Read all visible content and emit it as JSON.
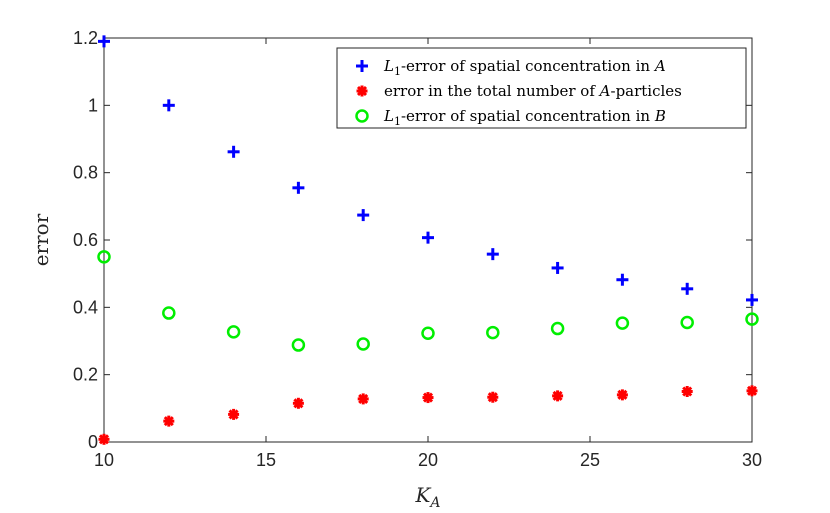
{
  "chart_data": {
    "type": "scatter",
    "xlabel": "K",
    "xlabel_sub": "A",
    "ylabel": "error",
    "xlim": [
      10,
      30
    ],
    "ylim": [
      0,
      1.2
    ],
    "xticks": [
      "10",
      "15",
      "20",
      "25",
      "30"
    ],
    "yticks": [
      "0",
      "0.2",
      "0.4",
      "0.6",
      "0.8",
      "1",
      "1.2"
    ],
    "grid": false,
    "legend_position": "top-right",
    "x": [
      10,
      12,
      14,
      16,
      18,
      20,
      22,
      24,
      26,
      28,
      30
    ],
    "series": [
      {
        "name_parts": [
          "L",
          "1",
          "-error of spatial concentration in ",
          "A"
        ],
        "marker": "plus",
        "color": "#0000ff",
        "values": [
          1.19,
          1.0,
          0.862,
          0.755,
          0.674,
          0.607,
          0.558,
          0.517,
          0.482,
          0.455,
          0.422
        ]
      },
      {
        "name_parts": [
          "error in the total number of ",
          "A",
          "-particles"
        ],
        "marker": "asterisk",
        "color": "#ff0000",
        "values": [
          0.008,
          0.062,
          0.082,
          0.115,
          0.128,
          0.132,
          0.133,
          0.137,
          0.14,
          0.15,
          0.152
        ]
      },
      {
        "name_parts": [
          "L",
          "1",
          "-error of spatial concentration in ",
          "B"
        ],
        "marker": "circle",
        "color": "#00ee00",
        "values": [
          0.55,
          0.383,
          0.327,
          0.288,
          0.291,
          0.323,
          0.325,
          0.337,
          0.353,
          0.355,
          0.365
        ]
      }
    ]
  }
}
